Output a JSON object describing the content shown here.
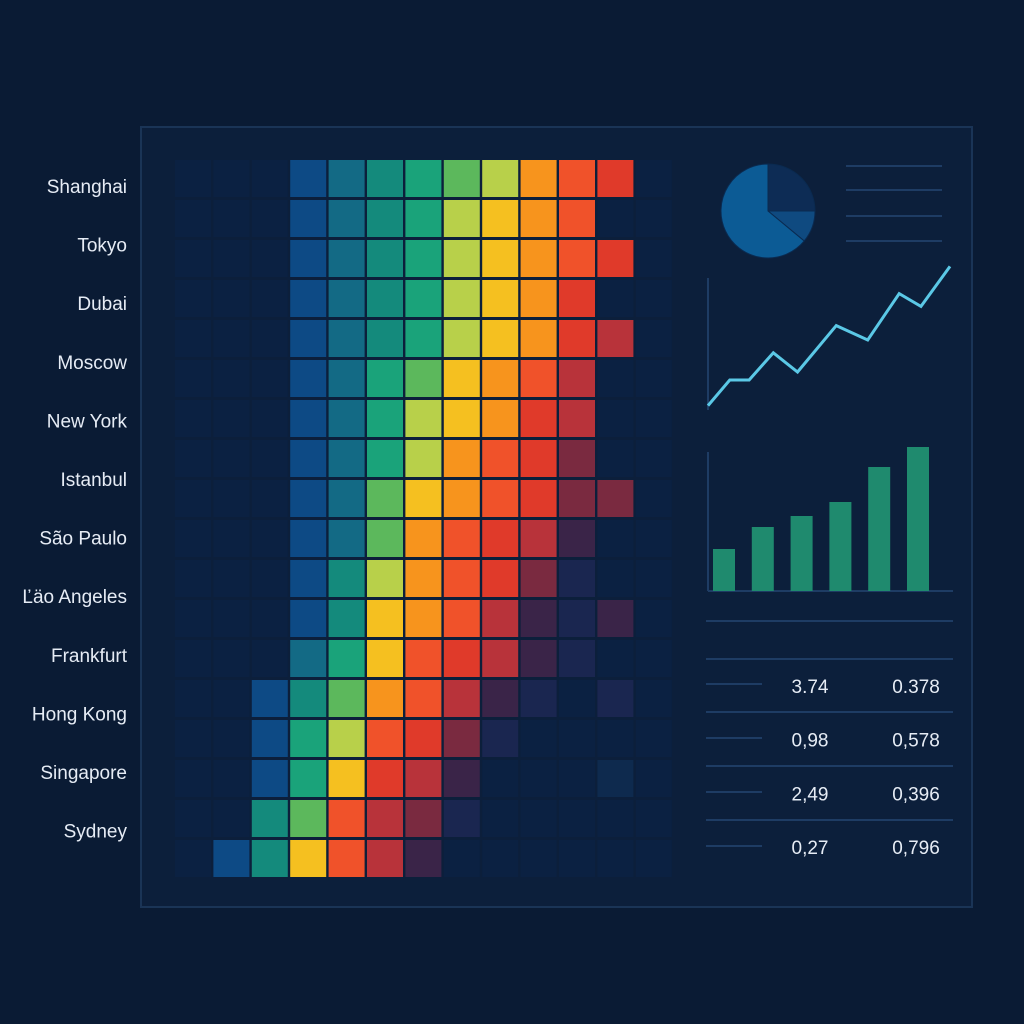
{
  "heatmap": {
    "labels": [
      "Shanghai",
      "Tokyo",
      "Dubai",
      "Moscow",
      "New York",
      "Istanbul",
      "São Paulo",
      "Ľäo Angeles",
      "Frankfurt",
      "Hong Kong",
      "Singapore",
      "Sydney"
    ],
    "colors": [
      "#0b2142",
      "#0e2a4e",
      "#0f3566",
      "#0d4a85",
      "#136a85",
      "#148a7c",
      "#1aa37a",
      "#5cb85c",
      "#b8d04a",
      "#f5c020",
      "#f7941d",
      "#f0522a",
      "#e03a2a",
      "#b8333a",
      "#7a2a40",
      "#3a2448",
      "#1a2650"
    ],
    "cells": [
      [
        0,
        0,
        0,
        3,
        4,
        5,
        6,
        7,
        8,
        10,
        11,
        12,
        0
      ],
      [
        0,
        0,
        0,
        3,
        4,
        5,
        6,
        8,
        9,
        10,
        11,
        0,
        0
      ],
      [
        0,
        0,
        0,
        3,
        4,
        5,
        6,
        8,
        9,
        10,
        11,
        12,
        0
      ],
      [
        0,
        0,
        0,
        3,
        4,
        5,
        6,
        8,
        9,
        10,
        12,
        0,
        0
      ],
      [
        0,
        0,
        0,
        3,
        4,
        5,
        6,
        8,
        9,
        10,
        12,
        13,
        0
      ],
      [
        0,
        0,
        0,
        3,
        4,
        6,
        7,
        9,
        10,
        11,
        13,
        0,
        0
      ],
      [
        0,
        0,
        0,
        3,
        4,
        6,
        8,
        9,
        10,
        12,
        13,
        0,
        0
      ],
      [
        0,
        0,
        0,
        3,
        4,
        6,
        8,
        10,
        11,
        12,
        14,
        0,
        0
      ],
      [
        0,
        0,
        0,
        3,
        4,
        7,
        9,
        10,
        11,
        12,
        14,
        14,
        0
      ],
      [
        0,
        0,
        0,
        3,
        4,
        7,
        10,
        11,
        12,
        13,
        15,
        0,
        0
      ],
      [
        0,
        0,
        0,
        3,
        5,
        8,
        10,
        11,
        12,
        14,
        16,
        0,
        0
      ],
      [
        0,
        0,
        0,
        3,
        5,
        9,
        10,
        11,
        13,
        15,
        16,
        15,
        0
      ],
      [
        0,
        0,
        0,
        4,
        6,
        9,
        11,
        12,
        13,
        15,
        16,
        0,
        0
      ],
      [
        0,
        0,
        3,
        5,
        7,
        10,
        11,
        13,
        15,
        16,
        0,
        16,
        0
      ],
      [
        0,
        0,
        3,
        6,
        8,
        11,
        12,
        14,
        16,
        0,
        0,
        0,
        0
      ],
      [
        0,
        0,
        3,
        6,
        9,
        12,
        13,
        15,
        0,
        0,
        0,
        1,
        0
      ],
      [
        0,
        0,
        5,
        7,
        11,
        13,
        14,
        16,
        0,
        0,
        0,
        0,
        0
      ],
      [
        0,
        3,
        5,
        9,
        11,
        13,
        15,
        0,
        0,
        0,
        0,
        0,
        0
      ]
    ]
  },
  "pie": {
    "values": [
      25,
      11,
      64
    ],
    "colors": [
      "#0d2c55",
      "#0f4a80",
      "#0c5b95"
    ]
  },
  "line": {
    "x": [
      0,
      9,
      17,
      27,
      37,
      53,
      66,
      79,
      88,
      100
    ],
    "values": [
      9,
      25,
      25,
      42,
      30,
      59,
      50,
      79,
      71,
      96
    ],
    "xlim": [
      0,
      100
    ],
    "ylim": [
      0,
      100
    ],
    "color": "#5bc8e6"
  },
  "bars": {
    "values": [
      42,
      64,
      75,
      89,
      124,
      144
    ],
    "ylim": [
      0,
      160
    ],
    "color": "#1f8a6e"
  },
  "table": {
    "rows": [
      [
        "3.74",
        "0.378"
      ],
      [
        "0,98",
        "0,578"
      ],
      [
        "2,49",
        "0,396"
      ],
      [
        "0,27",
        "0,796"
      ]
    ]
  }
}
